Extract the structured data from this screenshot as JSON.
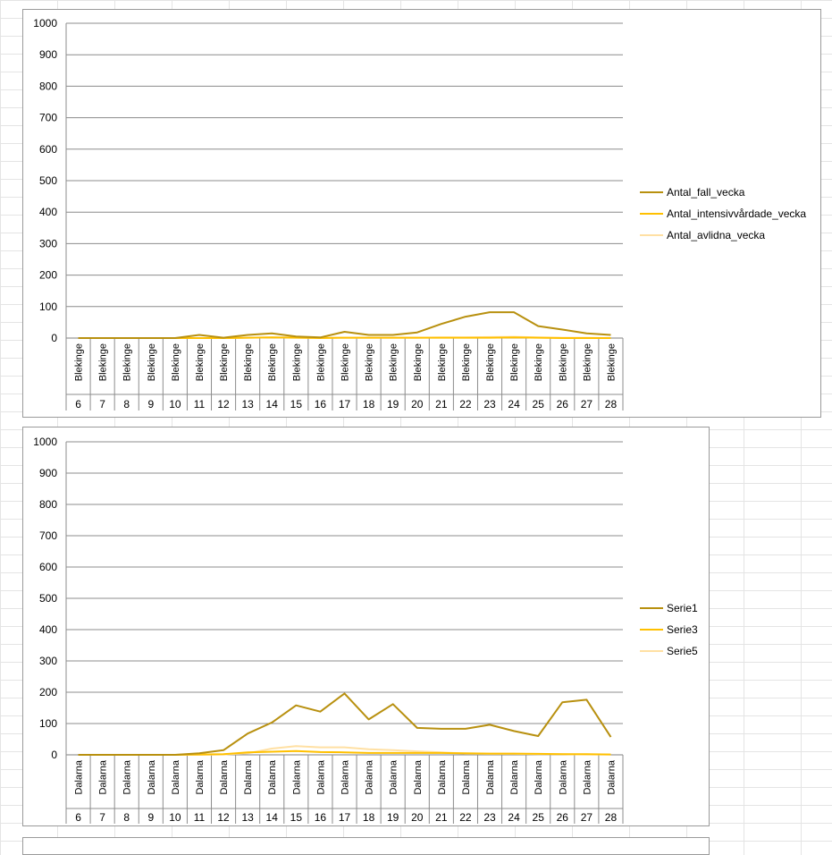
{
  "chart_data": [
    {
      "type": "line",
      "title": "",
      "xlabel": "",
      "ylabel": "",
      "ylim": [
        0,
        1000
      ],
      "yticks": [
        0,
        100,
        200,
        300,
        400,
        500,
        600,
        700,
        800,
        900,
        1000
      ],
      "grid": true,
      "legend_position": "right",
      "region_labels": [
        "Blekinge",
        "Blekinge",
        "Blekinge",
        "Blekinge",
        "Blekinge",
        "Blekinge",
        "Blekinge",
        "Blekinge",
        "Blekinge",
        "Blekinge",
        "Blekinge",
        "Blekinge",
        "Blekinge",
        "Blekinge",
        "Blekinge",
        "Blekinge",
        "Blekinge",
        "Blekinge",
        "Blekinge",
        "Blekinge",
        "Blekinge",
        "Blekinge",
        "Blekinge"
      ],
      "categories": [
        "6",
        "7",
        "8",
        "9",
        "10",
        "11",
        "12",
        "13",
        "14",
        "15",
        "16",
        "17",
        "18",
        "19",
        "20",
        "21",
        "22",
        "23",
        "24",
        "25",
        "26",
        "27",
        "28"
      ],
      "series": [
        {
          "name": "Antal_fall_vecka",
          "color": "#b8900f",
          "values": [
            0,
            0,
            0,
            0,
            0,
            10,
            1,
            10,
            15,
            5,
            2,
            20,
            10,
            10,
            18,
            45,
            68,
            82,
            82,
            38,
            27,
            15,
            10
          ]
        },
        {
          "name": "Antal_intensivvårdade_vecka",
          "color": "#ffc000",
          "values": [
            0,
            0,
            0,
            0,
            0,
            0,
            0,
            1,
            2,
            1,
            0,
            1,
            1,
            1,
            1,
            1,
            1,
            1,
            2,
            1,
            0,
            0,
            0
          ]
        },
        {
          "name": "Antal_avlidna_vecka",
          "color": "#ffe0a3",
          "values": [
            0,
            0,
            0,
            0,
            0,
            0,
            0,
            1,
            2,
            2,
            1,
            1,
            1,
            1,
            1,
            2,
            2,
            3,
            4,
            2,
            1,
            1,
            0
          ]
        }
      ]
    },
    {
      "type": "line",
      "title": "",
      "xlabel": "",
      "ylabel": "",
      "ylim": [
        0,
        1000
      ],
      "yticks": [
        0,
        100,
        200,
        300,
        400,
        500,
        600,
        700,
        800,
        900,
        1000
      ],
      "grid": true,
      "legend_position": "right",
      "region_labels": [
        "Dalarna",
        "Dalarna",
        "Dalarna",
        "Dalarna",
        "Dalarna",
        "Dalarna",
        "Dalarna",
        "Dalarna",
        "Dalarna",
        "Dalarna",
        "Dalarna",
        "Dalarna",
        "Dalarna",
        "Dalarna",
        "Dalarna",
        "Dalarna",
        "Dalarna",
        "Dalarna",
        "Dalarna",
        "Dalarna",
        "Dalarna",
        "Dalarna",
        "Dalarna"
      ],
      "categories": [
        "6",
        "7",
        "8",
        "9",
        "10",
        "11",
        "12",
        "13",
        "14",
        "15",
        "16",
        "17",
        "18",
        "19",
        "20",
        "21",
        "22",
        "23",
        "24",
        "25",
        "26",
        "27",
        "28"
      ],
      "series": [
        {
          "name": "Serie1",
          "color": "#b8900f",
          "values": [
            0,
            0,
            0,
            0,
            0,
            5,
            15,
            68,
            103,
            158,
            138,
            196,
            113,
            162,
            86,
            83,
            83,
            96,
            76,
            60,
            168,
            176,
            57
          ]
        },
        {
          "name": "Serie3",
          "color": "#ffc000",
          "values": [
            0,
            0,
            0,
            0,
            0,
            1,
            2,
            8,
            10,
            12,
            9,
            8,
            6,
            6,
            6,
            6,
            5,
            4,
            4,
            3,
            2,
            2,
            1
          ]
        },
        {
          "name": "Serie5",
          "color": "#ffe0a3",
          "values": [
            0,
            0,
            0,
            0,
            0,
            0,
            1,
            5,
            20,
            28,
            24,
            24,
            18,
            15,
            11,
            8,
            4,
            3,
            3,
            2,
            2,
            1,
            1
          ]
        }
      ]
    }
  ]
}
